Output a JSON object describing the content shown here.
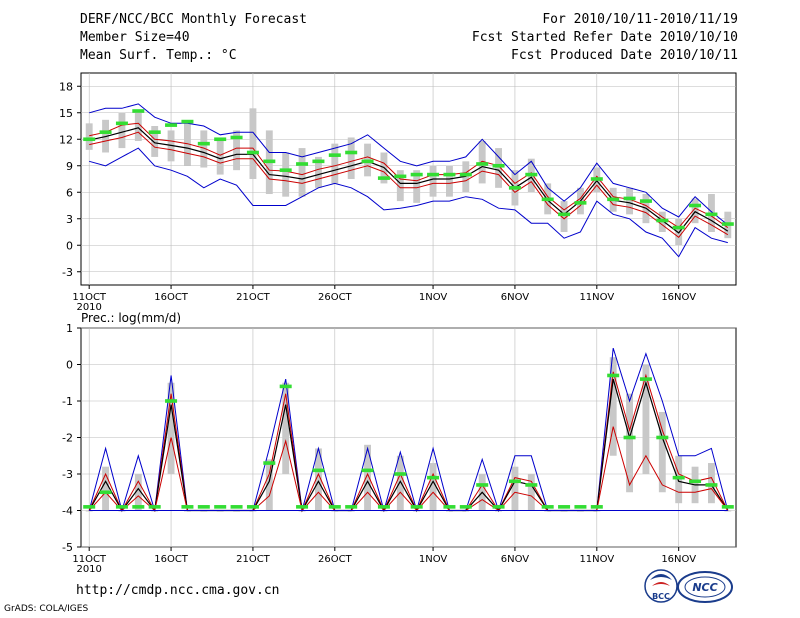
{
  "header": {
    "title": "DERF/NCC/BCC Monthly Forecast",
    "member_size": "Member Size=40",
    "variable": "Mean Surf. Temp.: °C",
    "period": "For 2010/10/11-2010/11/19",
    "refer_date": "Fcst Started Refer Date 2010/10/10",
    "produced_date": "Fcst Produced Date 2010/10/11"
  },
  "footer": {
    "url": "http://cmdp.ncc.cma.gov.cn",
    "grads": "GrADS: COLA/IGES",
    "logo_bcc": "BCC",
    "logo_ncc": "NCC"
  },
  "colors": {
    "max": "#0000cc",
    "p75": "#cc0000",
    "mean": "#000000",
    "box": "#c8c8c8",
    "obs": "#33dd33",
    "grid": "#bbbbbb"
  },
  "chart_data": [
    {
      "type": "line",
      "title": "Mean Surf. Temp.: °C",
      "xlabel": "",
      "ylabel": "",
      "x_ticks": [
        {
          "day": 0,
          "label": "11OCT"
        },
        {
          "day": 5,
          "label": "16OCT"
        },
        {
          "day": 10,
          "label": "21OCT"
        },
        {
          "day": 15,
          "label": "26OCT"
        },
        {
          "day": 21,
          "label": "1NOV"
        },
        {
          "day": 26,
          "label": "6NOV"
        },
        {
          "day": 31,
          "label": "11NOV"
        },
        {
          "day": 36,
          "label": "16NOV"
        }
      ],
      "x_year_label": "2010",
      "xlim": [
        -0.5,
        39.5
      ],
      "ylim": [
        -4.5,
        19.5
      ],
      "y_ticks": [
        -3,
        0,
        3,
        6,
        9,
        12,
        15,
        18
      ],
      "grid": true,
      "series": [
        {
          "name": "max",
          "values": [
            15.0,
            15.5,
            15.5,
            16.0,
            14.5,
            13.8,
            13.8,
            13.5,
            12.5,
            12.8,
            12.8,
            10.5,
            10.5,
            10.0,
            10.5,
            11.0,
            11.5,
            12.5,
            11.0,
            9.5,
            9.0,
            9.5,
            9.5,
            10.0,
            12.0,
            10.0,
            8.0,
            9.5,
            6.5,
            5.0,
            6.5,
            9.3,
            7.0,
            6.5,
            6.0,
            4.2,
            3.2,
            5.5,
            3.8,
            2.3
          ]
        },
        {
          "name": "p75",
          "values": [
            12.4,
            12.8,
            13.6,
            13.8,
            12.0,
            11.8,
            11.5,
            11.0,
            10.2,
            11.0,
            11.0,
            8.5,
            8.4,
            8.0,
            8.6,
            9.0,
            9.5,
            10.0,
            9.3,
            7.5,
            7.3,
            8.0,
            8.0,
            8.2,
            9.5,
            9.0,
            7.0,
            8.2,
            5.5,
            4.0,
            5.3,
            7.8,
            5.5,
            5.2,
            4.5,
            3.2,
            2.0,
            4.2,
            3.3,
            2.0
          ]
        },
        {
          "name": "mean",
          "values": [
            11.9,
            12.3,
            12.8,
            13.3,
            11.6,
            11.3,
            11.0,
            10.5,
            9.8,
            10.3,
            10.3,
            8.0,
            7.8,
            7.5,
            8.0,
            8.5,
            9.0,
            9.5,
            8.8,
            7.0,
            7.0,
            7.5,
            7.5,
            7.8,
            8.9,
            8.5,
            6.5,
            7.7,
            5.1,
            3.5,
            5.0,
            7.3,
            5.1,
            4.8,
            4.2,
            2.8,
            1.4,
            3.8,
            2.8,
            1.6
          ]
        },
        {
          "name": "p25",
          "values": [
            11.4,
            11.8,
            12.2,
            12.8,
            11.1,
            10.8,
            10.4,
            10.0,
            9.3,
            9.8,
            9.8,
            7.5,
            7.3,
            7.0,
            7.5,
            8.0,
            8.5,
            9.0,
            8.3,
            6.5,
            6.5,
            7.0,
            7.0,
            7.3,
            8.4,
            8.0,
            6.0,
            7.2,
            4.6,
            3.0,
            4.5,
            6.8,
            4.6,
            4.3,
            3.7,
            2.3,
            0.9,
            3.3,
            2.3,
            1.2
          ]
        },
        {
          "name": "min",
          "values": [
            9.5,
            9.0,
            10.0,
            11.0,
            9.0,
            8.5,
            7.8,
            6.5,
            7.5,
            6.8,
            4.5,
            4.5,
            4.5,
            5.5,
            6.5,
            7.0,
            6.5,
            5.5,
            4.0,
            4.2,
            4.5,
            5.0,
            5.0,
            5.5,
            5.2,
            4.2,
            4.0,
            2.5,
            2.5,
            0.8,
            1.5,
            5.0,
            3.5,
            3.0,
            1.5,
            0.8,
            -1.3,
            2.0,
            0.8,
            0.3
          ]
        }
      ],
      "boxes": {
        "low": [
          10.8,
          10.5,
          11.0,
          11.8,
          10.0,
          9.5,
          9.0,
          8.8,
          8.0,
          8.5,
          7.5,
          5.8,
          5.5,
          5.5,
          6.5,
          7.0,
          7.5,
          7.8,
          7.0,
          5.0,
          4.8,
          5.5,
          5.5,
          6.0,
          7.0,
          6.5,
          4.5,
          6.0,
          3.5,
          1.5,
          3.5,
          6.0,
          3.8,
          3.5,
          2.5,
          1.5,
          0.0,
          2.5,
          1.5,
          0.8
        ],
        "high": [
          13.8,
          14.2,
          15.0,
          15.2,
          13.5,
          13.0,
          14.0,
          13.0,
          12.0,
          13.0,
          15.5,
          13.0,
          10.5,
          11.0,
          10.0,
          11.5,
          12.2,
          11.5,
          10.5,
          8.5,
          8.5,
          9.0,
          9.0,
          9.5,
          11.8,
          11.0,
          8.5,
          9.8,
          7.0,
          5.0,
          6.5,
          8.8,
          6.5,
          6.5,
          5.8,
          3.8,
          3.0,
          5.3,
          5.8,
          3.8
        ]
      },
      "observed": [
        12.0,
        12.8,
        13.8,
        15.2,
        12.8,
        13.6,
        14.0,
        11.5,
        12.0,
        12.2,
        10.5,
        9.5,
        8.5,
        9.2,
        9.5,
        10.2,
        10.5,
        9.5,
        7.6,
        7.8,
        8.0,
        8.0,
        8.0,
        8.0,
        9.2,
        9.0,
        6.5,
        8.0,
        5.2,
        3.5,
        4.8,
        7.5,
        5.2,
        5.3,
        5.0,
        2.8,
        2.0,
        4.5,
        3.5,
        2.4
      ]
    },
    {
      "type": "line",
      "title": "Prec.: log(mm/d)",
      "xlabel": "",
      "ylabel": "",
      "x_ticks": [
        {
          "day": 0,
          "label": "11OCT"
        },
        {
          "day": 5,
          "label": "16OCT"
        },
        {
          "day": 10,
          "label": "21OCT"
        },
        {
          "day": 15,
          "label": "26OCT"
        },
        {
          "day": 21,
          "label": "1NOV"
        },
        {
          "day": 26,
          "label": "6NOV"
        },
        {
          "day": 31,
          "label": "11NOV"
        },
        {
          "day": 36,
          "label": "16NOV"
        }
      ],
      "x_year_label": "2010",
      "xlim": [
        -0.5,
        39.5
      ],
      "ylim": [
        -5,
        1
      ],
      "y_ticks": [
        -5,
        -4,
        -3,
        -2,
        -1,
        0,
        1
      ],
      "grid": true,
      "series": [
        {
          "name": "max",
          "values": [
            -4.0,
            -2.3,
            -4.0,
            -2.5,
            -4.0,
            -0.3,
            -4.0,
            -4.0,
            -4.0,
            -4.0,
            -4.0,
            -2.3,
            -0.4,
            -4.0,
            -2.3,
            -4.0,
            -4.0,
            -2.3,
            -4.0,
            -2.4,
            -4.0,
            -2.3,
            -4.0,
            -4.0,
            -2.6,
            -4.0,
            -2.5,
            -2.5,
            -4.0,
            -4.0,
            -4.0,
            -4.0,
            0.45,
            -1.0,
            0.3,
            -1.0,
            -2.5,
            -2.5,
            -2.3,
            -4.0
          ]
        },
        {
          "name": "p75",
          "values": [
            -4.0,
            -3.0,
            -4.0,
            -3.2,
            -4.0,
            -0.8,
            -4.0,
            -4.0,
            -4.0,
            -4.0,
            -4.0,
            -3.0,
            -0.8,
            -4.0,
            -3.0,
            -4.0,
            -4.0,
            -3.0,
            -4.0,
            -3.0,
            -4.0,
            -3.0,
            -4.0,
            -4.0,
            -3.3,
            -4.0,
            -3.1,
            -3.2,
            -4.0,
            -4.0,
            -4.0,
            -4.0,
            -0.2,
            -1.8,
            -0.3,
            -1.8,
            -3.0,
            -3.2,
            -3.1,
            -4.0
          ]
        },
        {
          "name": "mean",
          "values": [
            -4.0,
            -3.2,
            -4.0,
            -3.4,
            -4.0,
            -1.1,
            -4.0,
            -4.0,
            -4.0,
            -4.0,
            -4.0,
            -3.2,
            -1.1,
            -4.0,
            -3.2,
            -4.0,
            -4.0,
            -3.2,
            -4.0,
            -3.2,
            -4.0,
            -3.2,
            -4.0,
            -4.0,
            -3.5,
            -4.0,
            -3.2,
            -3.3,
            -4.0,
            -4.0,
            -4.0,
            -4.0,
            -0.4,
            -2.0,
            -0.5,
            -2.0,
            -3.2,
            -3.3,
            -3.3,
            -4.0
          ]
        },
        {
          "name": "p25",
          "values": [
            -4.0,
            -3.5,
            -4.0,
            -3.6,
            -4.0,
            -2.0,
            -4.0,
            -4.0,
            -4.0,
            -4.0,
            -4.0,
            -3.6,
            -2.1,
            -4.0,
            -3.5,
            -4.0,
            -4.0,
            -3.5,
            -4.0,
            -3.5,
            -4.0,
            -3.5,
            -4.0,
            -4.0,
            -3.7,
            -4.0,
            -3.5,
            -3.6,
            -4.0,
            -4.0,
            -4.0,
            -4.0,
            -1.7,
            -3.3,
            -2.5,
            -3.3,
            -3.5,
            -3.5,
            -3.4,
            -4.0
          ]
        },
        {
          "name": "min",
          "values": [
            -4.0,
            -4.0,
            -4.0,
            -4.0,
            -4.0,
            -4.0,
            -4.0,
            -4.0,
            -4.0,
            -4.0,
            -4.0,
            -4.0,
            -4.0,
            -4.0,
            -4.0,
            -4.0,
            -4.0,
            -4.0,
            -4.0,
            -4.0,
            -4.0,
            -4.0,
            -4.0,
            -4.0,
            -4.0,
            -4.0,
            -4.0,
            -4.0,
            -4.0,
            -4.0,
            -4.0,
            -4.0,
            -4.0,
            -4.0,
            -4.0,
            -4.0,
            -4.0,
            -4.0,
            -4.0,
            -4.0
          ]
        }
      ],
      "boxes": {
        "low": [
          -4.0,
          -4.0,
          -4.0,
          -4.0,
          -4.0,
          -3.0,
          -4.0,
          -4.0,
          -4.0,
          -4.0,
          -4.0,
          -4.0,
          -3.0,
          -4.0,
          -4.0,
          -4.0,
          -4.0,
          -4.0,
          -4.0,
          -4.0,
          -4.0,
          -4.0,
          -4.0,
          -4.0,
          -4.0,
          -4.0,
          -4.0,
          -4.0,
          -4.0,
          -4.0,
          -4.0,
          -4.0,
          -2.5,
          -3.5,
          -3.0,
          -3.5,
          -3.8,
          -3.8,
          -3.8,
          -4.0
        ],
        "high": [
          -4.0,
          -2.8,
          -4.0,
          -3.0,
          -4.0,
          -0.5,
          -4.0,
          -4.0,
          -4.0,
          -4.0,
          -4.0,
          -2.6,
          -0.5,
          -4.0,
          -2.3,
          -4.0,
          -4.0,
          -2.2,
          -4.0,
          -2.5,
          -4.0,
          -2.7,
          -4.0,
          -4.0,
          -3.0,
          -4.0,
          -2.8,
          -3.0,
          -4.0,
          -4.0,
          -4.0,
          -4.0,
          0.2,
          -0.8,
          0.0,
          -1.3,
          -2.5,
          -2.8,
          -2.7,
          -4.0
        ]
      },
      "observed": [
        -3.9,
        -3.5,
        -3.9,
        -3.9,
        -3.9,
        -1.0,
        -3.9,
        -3.9,
        -3.9,
        -3.9,
        -3.9,
        -2.7,
        -0.6,
        -3.9,
        -2.9,
        -3.9,
        -3.9,
        -2.9,
        -3.9,
        -3.0,
        -3.9,
        -3.1,
        -3.9,
        -3.9,
        -3.3,
        -3.9,
        -3.2,
        -3.3,
        -3.9,
        -3.9,
        -3.9,
        -3.9,
        -0.3,
        -2.0,
        -0.4,
        -2.0,
        -3.1,
        -3.2,
        -3.3,
        -3.9
      ]
    }
  ]
}
